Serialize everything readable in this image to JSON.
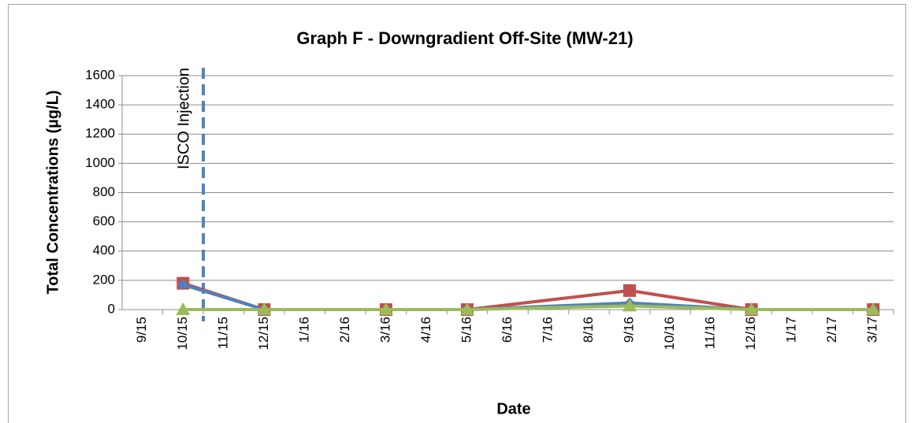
{
  "chart_data": {
    "type": "line",
    "title": "Graph F - Downgradient Off-Site (MW-21)",
    "x_label": "Date",
    "y_label": "Total Concentrations (µg/L)",
    "categories": [
      "9/15",
      "10/15",
      "11/15",
      "12/15",
      "1/16",
      "2/16",
      "3/16",
      "4/16",
      "5/16",
      "6/16",
      "7/16",
      "8/16",
      "9/16",
      "10/16",
      "11/16",
      "12/16",
      "1/17",
      "2/17",
      "3/17"
    ],
    "series": [
      {
        "color": "#c0504d",
        "marker": "square",
        "x": [
          "10/15",
          "12/15",
          "3/16",
          "5/16",
          "9/16",
          "12/16",
          "3/17"
        ],
        "values": [
          180,
          0,
          0,
          0,
          130,
          0,
          0
        ]
      },
      {
        "color": "#4f81bd",
        "marker": "diamond",
        "x": [
          "10/15",
          "12/15",
          "3/16",
          "5/16",
          "9/16",
          "12/16",
          "3/17"
        ],
        "values": [
          170,
          0,
          0,
          0,
          45,
          0,
          0
        ]
      },
      {
        "color": "#9bbb59",
        "marker": "triangle",
        "x": [
          "10/15",
          "12/15",
          "3/16",
          "5/16",
          "9/16",
          "12/16",
          "3/17"
        ],
        "values": [
          0,
          0,
          0,
          0,
          25,
          0,
          0
        ]
      }
    ],
    "ylim": [
      0,
      1600
    ],
    "yticks": [
      0,
      200,
      400,
      600,
      800,
      1000,
      1200,
      1400,
      1600
    ],
    "grid": true,
    "annotation": {
      "text": "ISCO Injection",
      "color": "#4f81bd"
    }
  }
}
